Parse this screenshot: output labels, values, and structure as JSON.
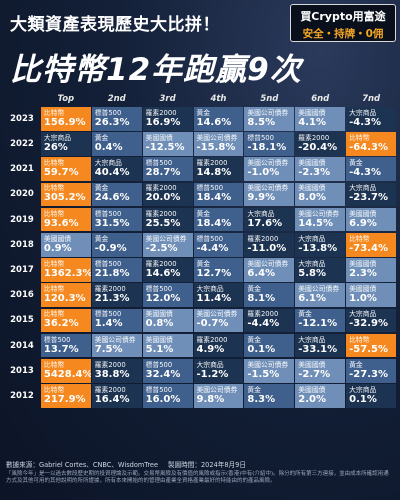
{
  "header": {
    "subtitle": "大類資產表現歷史大比拼！",
    "title": "比特幣12年跑贏9次",
    "brand_line1": "買Crypto用富途",
    "brand_line2": "安全・持牌・0佣"
  },
  "footer": {
    "source": "數據來源：Gabriel Cortes、CNBC、WisdomTree",
    "date": "製圖時間：2024年8月9日",
    "disclaimer": "「風險今年」是一以過去數段歷史期的投資理論及示範。交易幣風險及有價值的風險或指示(香港)中有(介紹中)。除分的所有第三方連接，並由成本所確認用通方式及其他可用的其他說明的所所證據，所有本來開始的的管理由產業全資格產業最好的特能由的的產品風險。"
  },
  "colors": {
    "bitcoin": "#f5891f",
    "dark": "#1c3352",
    "mid": "#3f5f8c",
    "light": "#6f8fb8",
    "lighter": "#93acc9"
  },
  "chart_data": {
    "type": "table",
    "title": "比特幣12年跑贏9次",
    "columns": [
      "Top",
      "2nd",
      "3rd",
      "4th",
      "5nd",
      "6nd",
      "7nd"
    ],
    "rows": [
      {
        "year": "2023",
        "cells": [
          {
            "name": "比特幣",
            "value": "156.9%"
          },
          {
            "name": "標普500",
            "value": "26.3%"
          },
          {
            "name": "羅素2000",
            "value": "16.9%"
          },
          {
            "name": "黃金",
            "value": "14.6%"
          },
          {
            "name": "美國公司債券",
            "value": "8.5%"
          },
          {
            "name": "美國國債",
            "value": "4.1%"
          },
          {
            "name": "大宗商品",
            "value": "-4.3%"
          }
        ]
      },
      {
        "year": "2022",
        "cells": [
          {
            "name": "大宗商品",
            "value": "26%"
          },
          {
            "name": "黃金",
            "value": "0.4%"
          },
          {
            "name": "美國國債",
            "value": "-12.5%"
          },
          {
            "name": "美國公司債券",
            "value": "-15.8%"
          },
          {
            "name": "標普500",
            "value": "-18.1%"
          },
          {
            "name": "羅素2000",
            "value": "-20.4%"
          },
          {
            "name": "比特幣",
            "value": "-64.3%"
          }
        ]
      },
      {
        "year": "2021",
        "cells": [
          {
            "name": "比特幣",
            "value": "59.7%"
          },
          {
            "name": "大宗商品",
            "value": "40.4%"
          },
          {
            "name": "標普500",
            "value": "28.7%"
          },
          {
            "name": "羅素2000",
            "value": "14.8%"
          },
          {
            "name": "美國公司債券",
            "value": "-1.0%"
          },
          {
            "name": "美國國債",
            "value": "-2.3%"
          },
          {
            "name": "黃金",
            "value": "-4.3%"
          }
        ]
      },
      {
        "year": "2020",
        "cells": [
          {
            "name": "比特幣",
            "value": "305.2%"
          },
          {
            "name": "黃金",
            "value": "24.6%"
          },
          {
            "name": "羅素2000",
            "value": "20.0%"
          },
          {
            "name": "標普500",
            "value": "18.4%"
          },
          {
            "name": "美國公司債券",
            "value": "9.9%"
          },
          {
            "name": "美國國債",
            "value": "8.0%"
          },
          {
            "name": "大宗商品",
            "value": "-23.7%"
          }
        ]
      },
      {
        "year": "2019",
        "cells": [
          {
            "name": "比特幣",
            "value": "93.6%"
          },
          {
            "name": "標普500",
            "value": "31.5%"
          },
          {
            "name": "羅素2000",
            "value": "25.5%"
          },
          {
            "name": "黃金",
            "value": "18.4%"
          },
          {
            "name": "大宗商品",
            "value": "17.6%"
          },
          {
            "name": "美國公司債券",
            "value": "14.5%"
          },
          {
            "name": "美國國債",
            "value": "6.9%"
          }
        ]
      },
      {
        "year": "2018",
        "cells": [
          {
            "name": "美國國債",
            "value": "0.9%"
          },
          {
            "name": "黃金",
            "value": "-0.9%"
          },
          {
            "name": "美國公司債券",
            "value": "-2.5%"
          },
          {
            "name": "標普500",
            "value": "-4.4%"
          },
          {
            "name": "羅素2000",
            "value": "-11.0%"
          },
          {
            "name": "大宗商品",
            "value": "-13.8%"
          },
          {
            "name": "比特幣",
            "value": "-73.4%"
          }
        ]
      },
      {
        "year": "2017",
        "cells": [
          {
            "name": "比特幣",
            "value": "1362.3%"
          },
          {
            "name": "標普500",
            "value": "21.8%"
          },
          {
            "name": "羅素2000",
            "value": "14.6%"
          },
          {
            "name": "黃金",
            "value": "12.7%"
          },
          {
            "name": "美國公司債券",
            "value": "6.4%"
          },
          {
            "name": "大宗商品",
            "value": "5.8%"
          },
          {
            "name": "美國國債",
            "value": "2.3%"
          }
        ]
      },
      {
        "year": "2016",
        "cells": [
          {
            "name": "比特幣",
            "value": "120.3%"
          },
          {
            "name": "羅素2000",
            "value": "21.3%"
          },
          {
            "name": "標普500",
            "value": "12.0%"
          },
          {
            "name": "大宗商品",
            "value": "11.4%"
          },
          {
            "name": "黃金",
            "value": "8.1%"
          },
          {
            "name": "美國公司債券",
            "value": "6.1%"
          },
          {
            "name": "美國國債",
            "value": "1.0%"
          }
        ]
      },
      {
        "year": "2015",
        "cells": [
          {
            "name": "比特幣",
            "value": "36.2%"
          },
          {
            "name": "標普500",
            "value": "1.4%"
          },
          {
            "name": "美國國債",
            "value": "0.8%"
          },
          {
            "name": "美國公司債券",
            "value": "-0.7%"
          },
          {
            "name": "羅素2000",
            "value": "-4.4%"
          },
          {
            "name": "黃金",
            "value": "-12.1%"
          },
          {
            "name": "大宗商品",
            "value": "-32.9%"
          }
        ]
      },
      {
        "year": "2014",
        "cells": [
          {
            "name": "標普500",
            "value": "13.7%"
          },
          {
            "name": "美國公司債券",
            "value": "7.5%"
          },
          {
            "name": "美國國債",
            "value": "5.1%"
          },
          {
            "name": "羅素2000",
            "value": "4.9%"
          },
          {
            "name": "黃金",
            "value": "0.1%"
          },
          {
            "name": "大宗商品",
            "value": "-33.1%"
          },
          {
            "name": "比特幣",
            "value": "-57.5%"
          }
        ]
      },
      {
        "year": "2013",
        "cells": [
          {
            "name": "比特幣",
            "value": "5428.4%"
          },
          {
            "name": "羅素2000",
            "value": "38.8%"
          },
          {
            "name": "標普500",
            "value": "32.4%"
          },
          {
            "name": "大宗商品",
            "value": "-1.2%"
          },
          {
            "name": "美國公司債券",
            "value": "-1.5%"
          },
          {
            "name": "美國國債",
            "value": "-2.7%"
          },
          {
            "name": "黃金",
            "value": "-27.3%"
          }
        ]
      },
      {
        "year": "2012",
        "cells": [
          {
            "name": "比特幣",
            "value": "217.9%"
          },
          {
            "name": "羅素2000",
            "value": "16.4%"
          },
          {
            "name": "標普500",
            "value": "16.0%"
          },
          {
            "name": "美國公司債券",
            "value": "9.8%"
          },
          {
            "name": "黃金",
            "value": "8.3%"
          },
          {
            "name": "美國國債",
            "value": "2.0%"
          },
          {
            "name": "大宗商品",
            "value": "0.1%"
          }
        ]
      }
    ]
  }
}
